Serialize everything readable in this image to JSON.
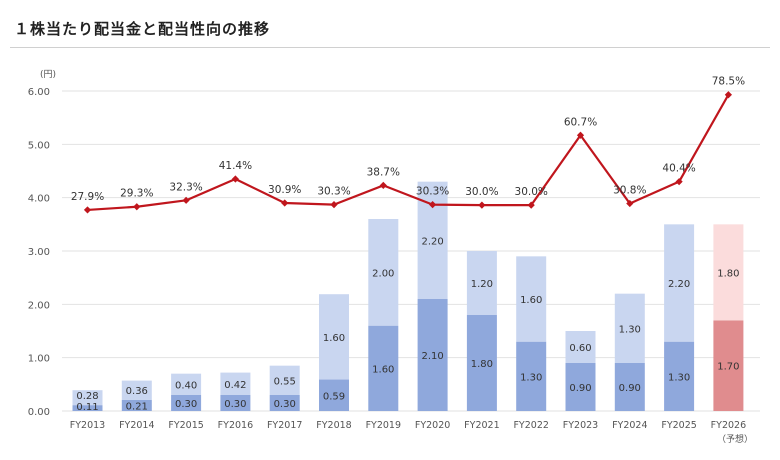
{
  "title": "１株当たり配当金と配当性向の推移",
  "chart_data": {
    "type": "bar",
    "stacked": true,
    "unit_label": "(円)",
    "categories": [
      "FY2013",
      "FY2014",
      "FY2015",
      "FY2016",
      "FY2017",
      "FY2018",
      "FY2019",
      "FY2020",
      "FY2021",
      "FY2022",
      "FY2023",
      "FY2024",
      "FY2025",
      "FY2026"
    ],
    "forecast_note": "（予想）",
    "ylim": [
      0,
      6
    ],
    "yticks": [
      "0.00",
      "1.00",
      "2.00",
      "3.00",
      "4.00",
      "5.00",
      "6.00"
    ],
    "series": [
      {
        "name": "lower",
        "values": [
          0.11,
          0.21,
          0.3,
          0.3,
          0.3,
          0.59,
          1.6,
          2.1,
          1.8,
          1.3,
          0.9,
          0.9,
          1.3,
          1.7
        ],
        "labels": [
          "0.11",
          "0.21",
          "0.30",
          "0.30",
          "0.30",
          "0.59",
          "1.60",
          "2.10",
          "1.80",
          "1.30",
          "0.90",
          "0.90",
          "1.30",
          "1.70"
        ]
      },
      {
        "name": "upper",
        "values": [
          0.28,
          0.36,
          0.4,
          0.42,
          0.55,
          1.6,
          2.0,
          2.2,
          1.2,
          1.6,
          0.6,
          1.3,
          2.2,
          1.8
        ],
        "labels": [
          "0.28",
          "0.36",
          "0.40",
          "0.42",
          "0.55",
          "1.60",
          "2.00",
          "2.20",
          "1.20",
          "1.60",
          "0.60",
          "1.30",
          "2.20",
          "1.80"
        ]
      }
    ],
    "payout_ratio": {
      "name": "配当性向",
      "values": [
        27.9,
        29.3,
        32.3,
        41.4,
        30.9,
        30.3,
        38.7,
        30.3,
        30.0,
        30.0,
        60.7,
        30.8,
        40.4,
        78.5
      ],
      "labels": [
        "27.9%",
        "29.3%",
        "32.3%",
        "41.4%",
        "30.9%",
        "30.3%",
        "38.7%",
        "30.3%",
        "30.0%",
        "30.0%",
        "60.7%",
        "30.8%",
        "40.4%",
        "78.5%"
      ],
      "plot_values": [
        3.77,
        3.83,
        3.95,
        4.35,
        3.9,
        3.87,
        4.23,
        3.87,
        3.86,
        3.86,
        5.17,
        3.89,
        4.3,
        5.93
      ]
    },
    "colors": {
      "lower": "#8fa8dc",
      "upper": "#c9d6f0",
      "lower_forecast": "#e08c8e",
      "upper_forecast": "#fbdcdc",
      "line": "#c0161d",
      "grid": "#e2e2e2",
      "text": "#555555"
    }
  }
}
